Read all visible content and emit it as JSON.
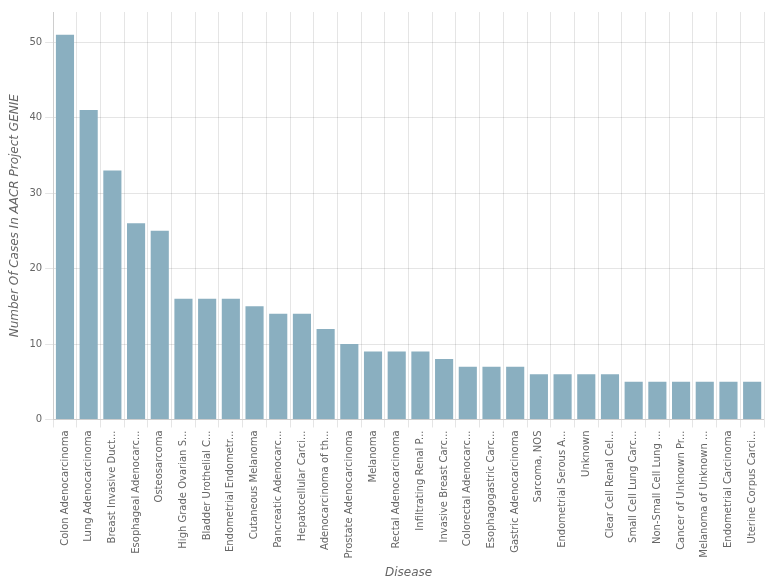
{
  "chart_data": {
    "type": "bar",
    "categories": [
      "Colon Adenocarcinoma",
      "Lung Adenocarcinoma",
      "Breast Invasive Duct...",
      "Esophageal Adenocarc...",
      "Osteosarcoma",
      "High Grade Ovarian S...",
      "Bladder Urothelial C...",
      "Endometrial Endometr...",
      "Cutaneous Melanoma",
      "Pancreatic Adenocarc...",
      "Hepatocellular Carci...",
      "Adenocarcinoma of th...",
      "Prostate Adenocarcinoma",
      "Melanoma",
      "Rectal Adenocarcinoma",
      "Infiltrating Renal P...",
      "Invasive Breast Carc...",
      "Colorectal Adenocarc...",
      "Esophagogastric Carc...",
      "Gastric Adenocarcinoma",
      "Sarcoma, NOS",
      "Endometrial Serous A...",
      "Unknown",
      "Clear Cell Renal Cel...",
      "Small Cell Lung Carc...",
      "Non-Small Cell Lung ...",
      "Cancer of Unknown Pr...",
      "Melanoma of Unknown ...",
      "Endometrial Carcinoma",
      "Uterine Corpus Carci..."
    ],
    "values": [
      51,
      41,
      33,
      26,
      25,
      16,
      16,
      16,
      15,
      14,
      14,
      12,
      10,
      9,
      9,
      9,
      8,
      7,
      7,
      7,
      6,
      6,
      6,
      6,
      5,
      5,
      5,
      5,
      5,
      5
    ],
    "color": "#8aafc0",
    "xlabel": "Disease",
    "ylabel": "Number Of Cases In AACR Project GENIE",
    "ylim": [
      0,
      54
    ],
    "yticks": [
      0,
      10,
      20,
      30,
      40,
      50
    ],
    "grid": true
  }
}
